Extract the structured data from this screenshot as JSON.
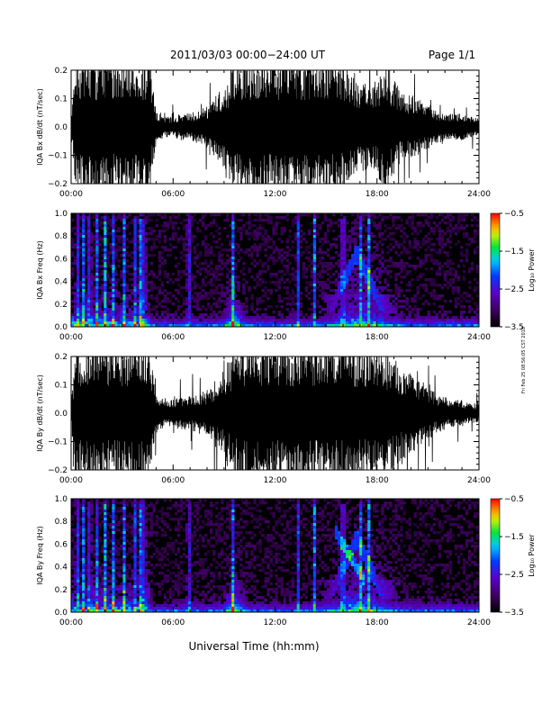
{
  "page": {
    "title": "2011/03/03  00:00−24:00 UT",
    "page_label": "Page 1/1",
    "xlabel": "Universal Time (hh:mm)",
    "side_stamp": "Fri Feb 25 08:56:05 CST 2018"
  },
  "chart_data": [
    {
      "type": "line",
      "id": "bx_waveform",
      "ylabel": "IQA Bx dB/dt (nT/sec)",
      "xlim": [
        0,
        24
      ],
      "ylim": [
        -0.2,
        0.2
      ],
      "x_ticks": [
        "00:00",
        "06:00",
        "12:00",
        "18:00",
        "24:00"
      ],
      "y_ticks": [
        "0.2",
        "0.1",
        "0.0",
        "−0.1",
        "−0.2"
      ],
      "envelope_x_hours": [
        0,
        0.3,
        0.5,
        1,
        1.5,
        2,
        2.5,
        3,
        3.5,
        3.8,
        4,
        4.3,
        4.6,
        5,
        5.5,
        6,
        6.5,
        7,
        7.5,
        8,
        8.5,
        9,
        9.5,
        10,
        10.5,
        11,
        11.5,
        12,
        12.5,
        13,
        13.5,
        14,
        14.5,
        15,
        15.5,
        16,
        16.5,
        17,
        17.5,
        18,
        18.5,
        19,
        19.5,
        20,
        20.5,
        21,
        21.5,
        22,
        22.5,
        23,
        23.5,
        24
      ],
      "envelope_amplitude": [
        0.03,
        0.21,
        0.21,
        0.21,
        0.21,
        0.21,
        0.21,
        0.21,
        0.21,
        0.21,
        0.21,
        0.21,
        0.21,
        0.05,
        0.03,
        0.03,
        0.04,
        0.04,
        0.05,
        0.06,
        0.09,
        0.12,
        0.18,
        0.21,
        0.21,
        0.21,
        0.21,
        0.21,
        0.21,
        0.21,
        0.21,
        0.21,
        0.21,
        0.21,
        0.21,
        0.2,
        0.15,
        0.13,
        0.13,
        0.15,
        0.2,
        0.14,
        0.1,
        0.1,
        0.08,
        0.07,
        0.05,
        0.04,
        0.04,
        0.04,
        0.03,
        0.03
      ]
    },
    {
      "type": "heatmap",
      "id": "bx_spectrogram",
      "ylabel": "IQA Bx Freq (Hz)",
      "xlim": [
        0,
        24
      ],
      "ylim": [
        0.0,
        1.0
      ],
      "x_ticks": [
        "00:00",
        "06:00",
        "12:00",
        "18:00",
        "24:00"
      ],
      "y_ticks": [
        "1.0",
        "0.8",
        "0.6",
        "0.4",
        "0.2",
        "0.0"
      ],
      "colorbar_label": "Log₁₀ Power",
      "colorbar_ticks": [
        "−0.5",
        "−1.5",
        "−2.5",
        "−3.5"
      ],
      "colorbar_range": [
        -3.5,
        -0.5
      ]
    },
    {
      "type": "line",
      "id": "by_waveform",
      "ylabel": "IQA By dB/dt (nT/sec)",
      "xlim": [
        0,
        24
      ],
      "ylim": [
        -0.2,
        0.2
      ],
      "x_ticks": [
        "00:00",
        "06:00",
        "12:00",
        "18:00",
        "24:00"
      ],
      "y_ticks": [
        "0.2",
        "0.1",
        "0.0",
        "−0.1",
        "−0.2"
      ],
      "envelope_x_hours": [
        0,
        0.3,
        0.5,
        1,
        1.5,
        2,
        2.5,
        3,
        3.5,
        3.8,
        4,
        4.3,
        4.6,
        5,
        5.5,
        6,
        6.5,
        7,
        7.5,
        8,
        8.5,
        9,
        9.5,
        10,
        10.5,
        11,
        11.5,
        12,
        12.5,
        13,
        13.5,
        14,
        14.5,
        15,
        15.5,
        16,
        16.5,
        17,
        17.5,
        18,
        18.5,
        19,
        19.5,
        20,
        20.5,
        21,
        21.5,
        22,
        22.5,
        23,
        23.5,
        24
      ],
      "envelope_amplitude": [
        0.03,
        0.21,
        0.21,
        0.21,
        0.21,
        0.21,
        0.21,
        0.21,
        0.21,
        0.21,
        0.21,
        0.21,
        0.21,
        0.06,
        0.04,
        0.04,
        0.05,
        0.05,
        0.06,
        0.07,
        0.1,
        0.13,
        0.18,
        0.21,
        0.21,
        0.21,
        0.21,
        0.21,
        0.21,
        0.21,
        0.21,
        0.21,
        0.21,
        0.21,
        0.21,
        0.21,
        0.21,
        0.2,
        0.2,
        0.19,
        0.18,
        0.16,
        0.14,
        0.12,
        0.1,
        0.08,
        0.06,
        0.05,
        0.04,
        0.04,
        0.03,
        0.03
      ]
    },
    {
      "type": "heatmap",
      "id": "by_spectrogram",
      "ylabel": "IQA By Freq (Hz)",
      "xlim": [
        0,
        24
      ],
      "ylim": [
        0.0,
        1.0
      ],
      "x_ticks": [
        "00:00",
        "06:00",
        "12:00",
        "18:00",
        "24:00"
      ],
      "y_ticks": [
        "1.0",
        "0.8",
        "0.6",
        "0.4",
        "0.2",
        "0.0"
      ],
      "colorbar_label": "Log₁₀ Power",
      "colorbar_ticks": [
        "−0.5",
        "−1.5",
        "−2.5",
        "−3.5"
      ],
      "colorbar_range": [
        -3.5,
        -0.5
      ]
    }
  ]
}
